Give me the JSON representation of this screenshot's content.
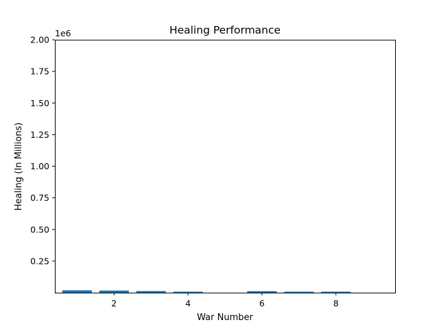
{
  "chart_data": {
    "type": "bar",
    "title": "Healing Performance",
    "xlabel": "War Number",
    "ylabel": "Healing (In Millions)",
    "y_scale_label": "1e6",
    "x": [
      1,
      2,
      3,
      4,
      5,
      6,
      7,
      8,
      9
    ],
    "values": [
      19000,
      17000,
      13000,
      8000,
      0,
      12000,
      7000,
      6000,
      0
    ],
    "xlim": [
      0.4,
      9.6
    ],
    "ylim": [
      0,
      2000000
    ],
    "x_ticks": [
      2,
      4,
      6,
      8
    ],
    "x_tick_labels": [
      "2",
      "4",
      "6",
      "8"
    ],
    "y_ticks": [
      250000,
      500000,
      750000,
      1000000,
      1250000,
      1500000,
      1750000,
      2000000
    ],
    "y_tick_labels": [
      "0.25",
      "0.50",
      "0.75",
      "1.00",
      "1.25",
      "1.50",
      "1.75",
      "2.00"
    ],
    "bar_width": 0.8,
    "bar_color": "#1f77b4",
    "grid": false
  }
}
